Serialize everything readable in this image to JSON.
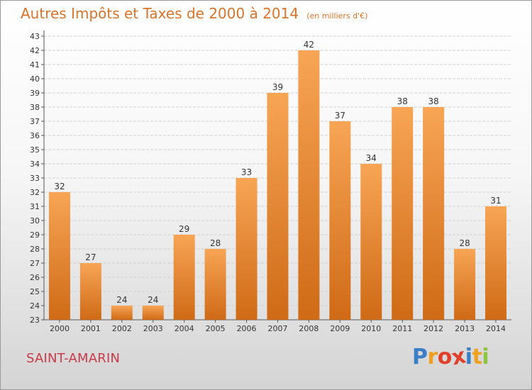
{
  "title": "Autres Impôts et Taxes de 2000 à 2014",
  "subtitle": "(en milliers d'€)",
  "town": "SAINT-AMARIN",
  "logo": {
    "text": "Proxiti",
    "colors": [
      "#3a7ec6",
      "#f0a020",
      "#e0402a",
      "#e0402a",
      "#3a7ec6",
      "#f0a020",
      "#8cc63e"
    ]
  },
  "colors": {
    "title": "#d8742a",
    "town": "#c93a48",
    "bar_top": "#f7a555",
    "bar_bottom": "#cf6a16"
  },
  "chart_data": {
    "type": "bar",
    "categories": [
      "2000",
      "2001",
      "2002",
      "2003",
      "2004",
      "2005",
      "2006",
      "2007",
      "2008",
      "2009",
      "2010",
      "2011",
      "2012",
      "2013",
      "2014"
    ],
    "values": [
      32,
      27,
      24,
      24,
      29,
      28,
      33,
      39,
      42,
      37,
      34,
      38,
      38,
      28,
      31
    ],
    "data_labels": [
      "32",
      "27",
      "24",
      "24",
      "29",
      "28",
      "33",
      "39",
      "42",
      "37",
      "34",
      "38",
      "38",
      "28",
      "31"
    ],
    "ylim": [
      23,
      43
    ],
    "yticks": [
      "23",
      "24",
      "25",
      "26",
      "27",
      "28",
      "29",
      "30",
      "31",
      "32",
      "33",
      "34",
      "35",
      "36",
      "37",
      "38",
      "39",
      "40",
      "41",
      "42",
      "43"
    ],
    "xlabel": "",
    "ylabel": "",
    "grid": true,
    "legend": "none"
  }
}
